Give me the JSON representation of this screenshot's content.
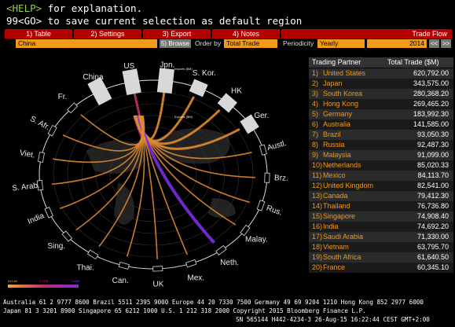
{
  "header": {
    "help_key": "<HELP>",
    "help_text": "for explanation.",
    "save_line": "99<GO> to save current selection as default region"
  },
  "menu": {
    "items": [
      "1) Table",
      "2) Settings",
      "3) Export",
      "4) Notes"
    ],
    "title": "Trade Flow"
  },
  "controls": {
    "region": "China",
    "browse": "5) Browse",
    "order_label": "Order by",
    "order_value": "Total Trade",
    "periodicity_label": "Periodicity",
    "periodicity_value": "Yearly",
    "year": "2014",
    "prev": "<<",
    "next": ">>"
  },
  "wheel": {
    "labels": [
      "China",
      "US",
      "Jpn.",
      "S. Kor.",
      "HK",
      "Ger.",
      "Austl.",
      "Brz.",
      "Rus.",
      "Malay.",
      "Neth.",
      "Mex.",
      "UK",
      "Can.",
      "Thai.",
      "Sing.",
      "India",
      "S. Arab.",
      "Viet.",
      "S. Afr.",
      "Fr."
    ],
    "imports_label": "Imports ($M)",
    "exports_label": "Exports ($M)",
    "legend": [
      "845.6k",
      "1.27M",
      "1.69M"
    ]
  },
  "table": {
    "headers": [
      "Trading Partner",
      "Total Trade ($M)"
    ],
    "rows": [
      [
        "1)",
        "United States",
        "620,792.00"
      ],
      [
        "2)",
        "Japan",
        "343,575.00"
      ],
      [
        "3)",
        "South Korea",
        "280,368.20"
      ],
      [
        "4)",
        "Hong Kong",
        "269,465.20"
      ],
      [
        "5)",
        "Germany",
        "183,992.30"
      ],
      [
        "6)",
        "Australia",
        "141,585.00"
      ],
      [
        "7)",
        "Brazil",
        "93,050.30"
      ],
      [
        "8)",
        "Russia",
        "92,487.30"
      ],
      [
        "9)",
        "Malaysia",
        "91,099.00"
      ],
      [
        "10)",
        "Netherlands",
        "85,020.33"
      ],
      [
        "11)",
        "Mexico",
        "84,113.70"
      ],
      [
        "12)",
        "United Kingdom",
        "82,541.00"
      ],
      [
        "13)",
        "Canada",
        "79,412.30"
      ],
      [
        "14)",
        "Thailand",
        "76,736.80"
      ],
      [
        "15)",
        "Singapore",
        "74,908.40"
      ],
      [
        "16)",
        "India",
        "74,692.20"
      ],
      [
        "17)",
        "Saudi Arabia",
        "71,330.00"
      ],
      [
        "18)",
        "Vietnam",
        "63,795.70"
      ],
      [
        "19)",
        "South Africa",
        "61,640.50"
      ],
      [
        "20)",
        "France",
        "60,345.10"
      ]
    ]
  },
  "footer": [
    "Australia 61 2 9777 8600 Brazil 5511 2395 9000 Europe 44 20 7330 7500 Germany 49 69 9204 1210 Hong Kong 852 2977 6000",
    "Japan 81 3 3201 8900         Singapore 65 6212 1000         U.S. 1 212 318 2000         Copyright 2015 Bloomberg Finance L.P.",
    "SN 565144 H442-4234-3 26-Aug-15 16:22:44 CEST GMT+2:00"
  ]
}
